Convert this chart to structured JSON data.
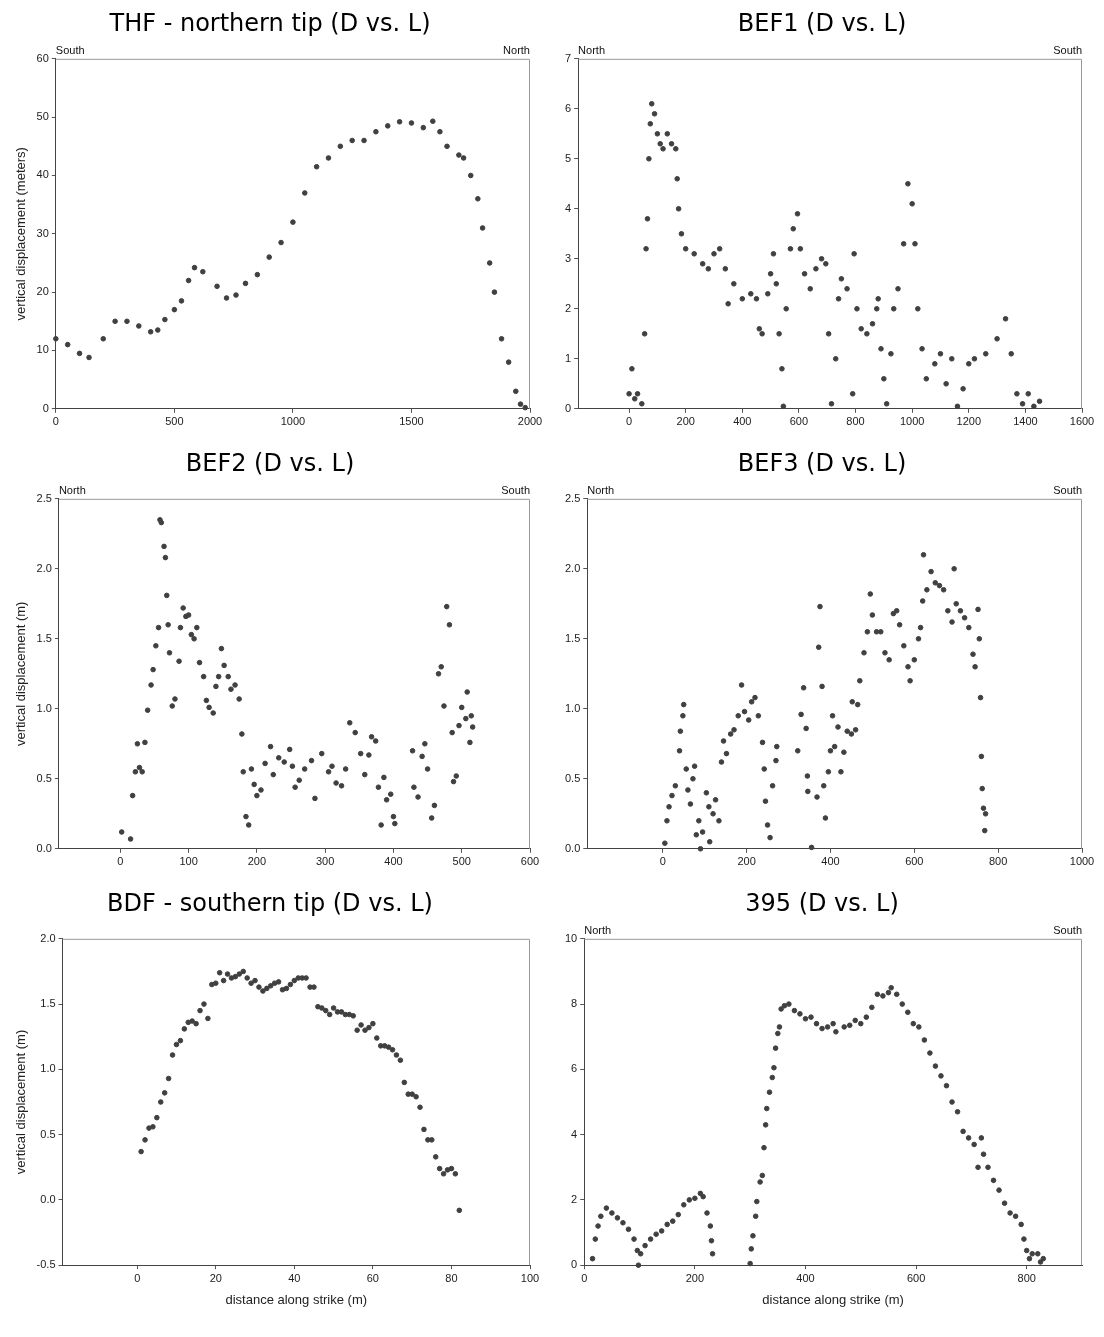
{
  "chart_data": [
    {
      "type": "scatter",
      "title": "THF - northern tip (D vs. L)",
      "ylabel": "vertical displacement (meters)",
      "annotations": [
        "South",
        "North"
      ],
      "marker": "circle",
      "xlim": [
        0,
        2000
      ],
      "xticks": [
        0,
        500,
        1000,
        1500,
        2000
      ],
      "ylim": [
        0,
        60
      ],
      "yticks": [
        0,
        10,
        20,
        30,
        40,
        50,
        60
      ],
      "series": [
        {
          "color": "#404040",
          "x": [
            0,
            50,
            100,
            140,
            200,
            250,
            300,
            350,
            400,
            430,
            460,
            500,
            530,
            560,
            585,
            620,
            680,
            720,
            760,
            800,
            850,
            900,
            950,
            1000,
            1050,
            1100,
            1150,
            1200,
            1250,
            1300,
            1350,
            1400,
            1450,
            1500,
            1550,
            1590,
            1620,
            1650,
            1700,
            1720,
            1750,
            1780,
            1800,
            1830,
            1850,
            1880,
            1910,
            1940,
            1960,
            1980
          ],
          "values": [
            12,
            11,
            9.5,
            8.8,
            12,
            15,
            15,
            14.2,
            13.2,
            13.5,
            15.3,
            17,
            18.5,
            22,
            24.2,
            23.5,
            21,
            19,
            19.5,
            21.5,
            23,
            26,
            28.5,
            32,
            37,
            41.5,
            43,
            45,
            46,
            46,
            47.5,
            48.5,
            49.2,
            49,
            48.2,
            49.3,
            47.5,
            45,
            43.5,
            43,
            40,
            36,
            31,
            25,
            20,
            12,
            8,
            3,
            0.8,
            0.2
          ]
        }
      ]
    },
    {
      "type": "scatter",
      "title": "BEF1 (D vs. L)",
      "annotations": [
        "North",
        "South"
      ],
      "marker": "circle",
      "xlim": [
        -180,
        1600
      ],
      "xticks": [
        0,
        200,
        400,
        600,
        800,
        1000,
        1200,
        1400,
        1600
      ],
      "ylim": [
        0,
        7
      ],
      "yticks": [
        0,
        1,
        2,
        3,
        4,
        5,
        6,
        7
      ],
      "series": [
        {
          "color": "#404040",
          "x": [
            0,
            10,
            20,
            30,
            45,
            55,
            60,
            65,
            70,
            75,
            80,
            90,
            100,
            110,
            120,
            135,
            150,
            165,
            170,
            175,
            185,
            200,
            230,
            260,
            280,
            300,
            320,
            340,
            350,
            370,
            400,
            430,
            450,
            460,
            470,
            490,
            500,
            510,
            520,
            530,
            540,
            545,
            555,
            570,
            580,
            595,
            605,
            620,
            640,
            660,
            680,
            695,
            705,
            715,
            730,
            740,
            750,
            770,
            790,
            795,
            805,
            820,
            840,
            860,
            875,
            880,
            890,
            900,
            910,
            925,
            935,
            950,
            970,
            985,
            1000,
            1010,
            1020,
            1035,
            1050,
            1080,
            1100,
            1120,
            1140,
            1160,
            1180,
            1200,
            1220,
            1260,
            1300,
            1330,
            1350,
            1370,
            1390,
            1410,
            1430,
            1450
          ],
          "values": [
            0.3,
            0.8,
            0.2,
            0.3,
            0.1,
            1.5,
            3.2,
            3.8,
            5.0,
            5.7,
            6.1,
            5.9,
            5.5,
            5.3,
            5.2,
            5.5,
            5.3,
            5.2,
            4.6,
            4.0,
            3.5,
            3.2,
            3.1,
            2.9,
            2.8,
            3.1,
            3.2,
            2.8,
            2.1,
            2.5,
            2.2,
            2.3,
            2.2,
            1.6,
            1.5,
            2.3,
            2.7,
            3.1,
            2.5,
            1.5,
            0.8,
            0.05,
            2.0,
            3.2,
            3.6,
            3.9,
            3.2,
            2.7,
            2.4,
            2.8,
            3.0,
            2.9,
            1.5,
            0.1,
            1.0,
            2.2,
            2.6,
            2.4,
            0.3,
            3.1,
            2.0,
            1.6,
            1.5,
            1.7,
            2.0,
            2.2,
            1.2,
            0.6,
            0.1,
            1.1,
            2.0,
            2.4,
            3.3,
            4.5,
            4.1,
            3.3,
            2.0,
            1.2,
            0.6,
            0.9,
            1.1,
            0.5,
            1.0,
            0.05,
            0.4,
            0.9,
            1.0,
            1.1,
            1.4,
            1.8,
            1.1,
            0.3,
            0.1,
            0.3,
            0.05,
            0.15
          ]
        }
      ]
    },
    {
      "type": "scatter",
      "title": "BEF2 (D vs. L)",
      "ylabel": "vertical displacement (m)",
      "annotations": [
        "North",
        "South"
      ],
      "marker": "circle",
      "xlim": [
        -90,
        600
      ],
      "xticks": [
        0,
        100,
        200,
        300,
        400,
        500,
        600
      ],
      "ylim": [
        0,
        2.5
      ],
      "yticks": [
        {
          "value": 0,
          "label": "0.0"
        },
        0.5,
        {
          "value": 1,
          "label": "1.0"
        },
        1.5,
        {
          "value": 2,
          "label": "2.0"
        },
        2.5
      ],
      "series": [
        {
          "color": "#404040",
          "x": [
            2,
            15,
            18,
            22,
            25,
            28,
            32,
            36,
            40,
            45,
            48,
            52,
            56,
            58,
            60,
            64,
            66,
            68,
            70,
            72,
            76,
            80,
            86,
            88,
            92,
            96,
            100,
            104,
            108,
            112,
            116,
            122,
            126,
            130,
            136,
            140,
            144,
            148,
            152,
            158,
            162,
            168,
            174,
            178,
            180,
            184,
            188,
            192,
            196,
            200,
            206,
            212,
            220,
            224,
            232,
            240,
            248,
            252,
            256,
            262,
            270,
            280,
            285,
            295,
            305,
            310,
            316,
            324,
            330,
            336,
            344,
            352,
            358,
            364,
            368,
            374,
            378,
            382,
            386,
            390,
            396,
            400,
            402,
            428,
            430,
            436,
            442,
            446,
            450,
            456,
            460,
            466,
            470,
            474,
            478,
            482,
            486,
            488,
            492,
            496,
            500,
            506,
            508,
            512,
            514,
            516
          ],
          "values": [
            0.12,
            0.07,
            0.38,
            0.55,
            0.75,
            0.58,
            0.55,
            0.76,
            0.99,
            1.17,
            1.28,
            1.45,
            1.58,
            2.35,
            2.33,
            2.16,
            2.08,
            1.81,
            1.6,
            1.4,
            1.02,
            1.07,
            1.34,
            1.58,
            1.72,
            1.66,
            1.67,
            1.53,
            1.5,
            1.58,
            1.33,
            1.23,
            1.06,
            1.01,
            0.97,
            1.16,
            1.23,
            1.43,
            1.31,
            1.23,
            1.14,
            1.17,
            1.07,
            0.82,
            0.55,
            0.23,
            0.17,
            0.57,
            0.46,
            0.38,
            0.42,
            0.61,
            0.73,
            0.53,
            0.65,
            0.62,
            0.71,
            0.59,
            0.44,
            0.49,
            0.57,
            0.63,
            0.36,
            0.68,
            0.55,
            0.59,
            0.47,
            0.45,
            0.57,
            0.9,
            0.83,
            0.68,
            0.53,
            0.67,
            0.8,
            0.77,
            0.44,
            0.17,
            0.51,
            0.35,
            0.39,
            0.23,
            0.18,
            0.7,
            0.44,
            0.37,
            0.66,
            0.75,
            0.57,
            0.22,
            0.31,
            1.25,
            1.3,
            1.02,
            1.73,
            1.6,
            0.83,
            0.48,
            0.52,
            0.88,
            1.01,
            0.93,
            1.12,
            0.76,
            0.95,
            0.87
          ]
        }
      ]
    },
    {
      "type": "scatter",
      "title": "BEF3 (D vs. L)",
      "annotations": [
        "North",
        "South"
      ],
      "marker": "circle",
      "xlim": [
        -180,
        1000
      ],
      "xticks": [
        0,
        200,
        400,
        600,
        800,
        1000
      ],
      "ylim": [
        0,
        2.5
      ],
      "yticks": [
        {
          "value": 0,
          "label": "0.0"
        },
        0.5,
        {
          "value": 1,
          "label": "1.0"
        },
        1.5,
        {
          "value": 2,
          "label": "2.0"
        },
        2.5
      ],
      "series": [
        {
          "color": "#404040",
          "x": [
            5,
            10,
            15,
            22,
            30,
            40,
            42,
            48,
            50,
            56,
            60,
            66,
            72,
            76,
            80,
            86,
            90,
            95,
            104,
            110,
            112,
            120,
            126,
            134,
            140,
            145,
            152,
            162,
            170,
            180,
            188,
            195,
            205,
            212,
            220,
            228,
            238,
            242,
            245,
            250,
            256,
            262,
            270,
            272,
            322,
            330,
            336,
            342,
            345,
            346,
            355,
            368,
            372,
            375,
            380,
            384,
            388,
            395,
            400,
            405,
            410,
            418,
            425,
            432,
            440,
            450,
            452,
            460,
            465,
            470,
            480,
            488,
            495,
            500,
            510,
            520,
            530,
            540,
            550,
            558,
            565,
            575,
            585,
            590,
            600,
            610,
            615,
            620,
            622,
            630,
            640,
            650,
            660,
            670,
            680,
            690,
            695,
            700,
            710,
            720,
            730,
            740,
            745,
            752,
            755,
            758,
            760,
            762,
            765,
            768,
            770
          ],
          "values": [
            0.04,
            0.2,
            0.3,
            0.38,
            0.45,
            0.7,
            0.84,
            0.95,
            1.03,
            0.57,
            0.42,
            0.32,
            0.5,
            0.59,
            0.1,
            0.2,
            0.0,
            0.12,
            0.4,
            0.3,
            0.05,
            0.25,
            0.35,
            0.2,
            0.62,
            0.77,
            0.68,
            0.82,
            0.85,
            0.95,
            1.17,
            0.98,
            0.92,
            1.05,
            1.08,
            0.95,
            0.76,
            0.57,
            0.34,
            0.17,
            0.08,
            0.45,
            0.63,
            0.73,
            0.7,
            0.96,
            1.15,
            0.86,
            0.52,
            0.41,
            0.01,
            0.37,
            1.44,
            1.73,
            1.16,
            0.45,
            0.22,
            0.55,
            0.7,
            0.95,
            0.73,
            0.87,
            0.55,
            0.69,
            0.84,
            0.82,
            1.05,
            0.85,
            1.03,
            1.2,
            1.4,
            1.55,
            1.82,
            1.67,
            1.55,
            1.55,
            1.4,
            1.35,
            1.68,
            1.7,
            1.6,
            1.45,
            1.3,
            1.2,
            1.35,
            1.5,
            1.58,
            1.77,
            2.1,
            1.85,
            1.98,
            1.9,
            1.88,
            1.85,
            1.7,
            1.62,
            2.0,
            1.75,
            1.7,
            1.65,
            1.58,
            1.39,
            1.3,
            1.71,
            1.5,
            1.08,
            0.66,
            0.43,
            0.29,
            0.13,
            0.25
          ]
        }
      ]
    },
    {
      "type": "scatter",
      "title": "BDF - southern tip (D vs. L)",
      "xlabel": "distance along strike (m)",
      "ylabel": "vertical displacement (m)",
      "marker": "circle",
      "xlim": [
        -19,
        100
      ],
      "xticks": [
        0,
        20,
        40,
        60,
        80,
        100
      ],
      "ylim": [
        -0.5,
        2
      ],
      "yticks": [
        -0.5,
        {
          "value": 0,
          "label": "0.0"
        },
        0.5,
        {
          "value": 1,
          "label": "1.0"
        },
        1.5,
        {
          "value": 2,
          "label": "2.0"
        }
      ],
      "series": [
        {
          "color": "#404040",
          "x": [
            1,
            2,
            3,
            4,
            5,
            6,
            7,
            8,
            9,
            10,
            11,
            12,
            13,
            14,
            15,
            16,
            17,
            18,
            19,
            20,
            21,
            22,
            23,
            24,
            25,
            26,
            27,
            28,
            29,
            30,
            31,
            32,
            33,
            34,
            35,
            36,
            37,
            38,
            39,
            40,
            41,
            42,
            43,
            44,
            45,
            46,
            47,
            48,
            49,
            50,
            51,
            52,
            53,
            54,
            55,
            56,
            57,
            58,
            59,
            60,
            61,
            62,
            63,
            64,
            65,
            66,
            67,
            68,
            69,
            70,
            71,
            72,
            73,
            74,
            75,
            76,
            77,
            78,
            79,
            80,
            81,
            82
          ],
          "values": [
            0.37,
            0.46,
            0.55,
            0.56,
            0.63,
            0.75,
            0.82,
            0.93,
            1.11,
            1.19,
            1.22,
            1.31,
            1.36,
            1.37,
            1.35,
            1.45,
            1.5,
            1.39,
            1.65,
            1.66,
            1.74,
            1.68,
            1.73,
            1.7,
            1.71,
            1.73,
            1.75,
            1.7,
            1.66,
            1.68,
            1.63,
            1.6,
            1.62,
            1.64,
            1.66,
            1.67,
            1.61,
            1.62,
            1.65,
            1.68,
            1.7,
            1.7,
            1.7,
            1.63,
            1.63,
            1.48,
            1.47,
            1.45,
            1.42,
            1.47,
            1.44,
            1.44,
            1.42,
            1.42,
            1.41,
            1.3,
            1.34,
            1.3,
            1.32,
            1.35,
            1.24,
            1.18,
            1.18,
            1.17,
            1.15,
            1.11,
            1.07,
            0.9,
            0.81,
            0.81,
            0.79,
            0.71,
            0.54,
            0.46,
            0.46,
            0.33,
            0.24,
            0.2,
            0.23,
            0.24,
            0.2,
            -0.08
          ]
        }
      ]
    },
    {
      "type": "scatter",
      "title": "395 (D vs. L)",
      "xlabel": "distance along strike (m)",
      "annotations": [
        "North",
        "South"
      ],
      "marker": "circle",
      "xlim": [
        0,
        900
      ],
      "xticks": [
        0,
        200,
        400,
        600,
        800
      ],
      "ylim": [
        0,
        10
      ],
      "yticks": [
        0,
        2,
        4,
        6,
        8,
        10
      ],
      "series": [
        {
          "color": "#404040",
          "x": [
            15,
            20,
            25,
            30,
            40,
            50,
            60,
            70,
            80,
            90,
            96,
            98,
            102,
            110,
            120,
            130,
            140,
            150,
            160,
            170,
            180,
            190,
            200,
            210,
            215,
            222,
            228,
            230,
            232,
            300,
            302,
            305,
            310,
            312,
            318,
            322,
            325,
            328,
            330,
            335,
            340,
            343,
            346,
            350,
            353,
            356,
            362,
            370,
            380,
            390,
            400,
            410,
            420,
            430,
            440,
            450,
            455,
            470,
            480,
            490,
            500,
            510,
            520,
            530,
            540,
            550,
            555,
            565,
            575,
            585,
            595,
            605,
            615,
            625,
            635,
            645,
            655,
            665,
            675,
            685,
            695,
            705,
            712,
            718,
            722,
            730,
            740,
            750,
            760,
            770,
            780,
            790,
            795,
            800,
            805,
            810,
            820,
            825,
            830
          ],
          "values": [
            0.2,
            0.8,
            1.2,
            1.5,
            1.75,
            1.6,
            1.45,
            1.3,
            1.1,
            0.8,
            0.45,
            0.0,
            0.35,
            0.6,
            0.8,
            0.95,
            1.05,
            1.25,
            1.35,
            1.55,
            1.85,
            2.0,
            2.05,
            2.2,
            2.1,
            1.6,
            1.2,
            0.75,
            0.35,
            0.05,
            0.5,
            0.9,
            1.5,
            1.95,
            2.55,
            2.75,
            3.6,
            4.3,
            4.8,
            5.3,
            5.75,
            6.05,
            6.65,
            7.1,
            7.3,
            7.85,
            7.95,
            8.0,
            7.8,
            7.7,
            7.55,
            7.6,
            7.4,
            7.25,
            7.3,
            7.4,
            7.15,
            7.3,
            7.35,
            7.5,
            7.4,
            7.6,
            7.9,
            8.3,
            8.25,
            8.35,
            8.5,
            8.3,
            8.0,
            7.75,
            7.4,
            7.3,
            6.9,
            6.5,
            6.1,
            5.8,
            5.5,
            5.0,
            4.7,
            4.1,
            3.9,
            3.7,
            3.0,
            3.9,
            3.4,
            3.0,
            2.6,
            2.3,
            1.9,
            1.6,
            1.5,
            1.25,
            0.8,
            0.45,
            0.2,
            0.35,
            0.35,
            0.1,
            0.2
          ]
        }
      ]
    }
  ]
}
